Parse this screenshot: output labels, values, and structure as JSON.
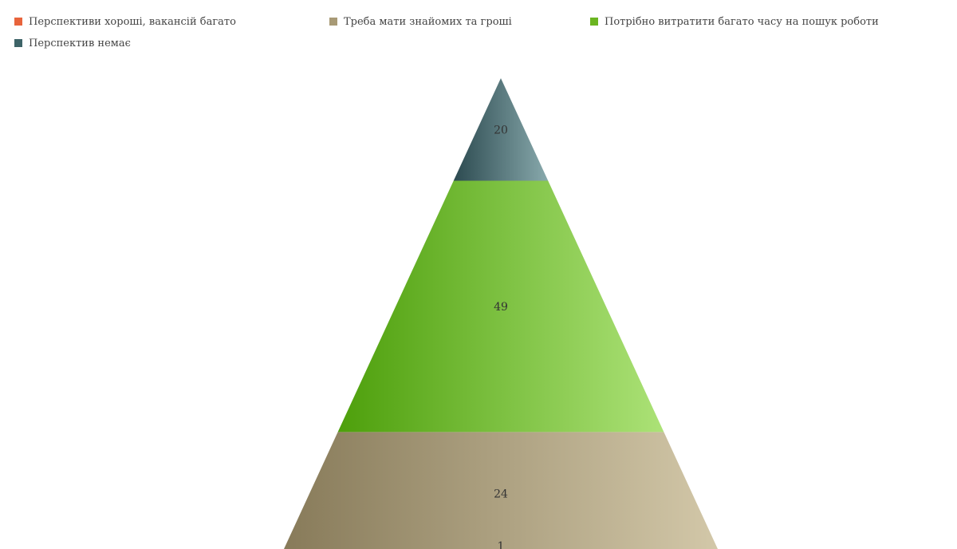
{
  "chart_data": {
    "type": "pyramid",
    "series": [
      {
        "name": "Перспективи хороші, вакансій багато",
        "value": 1,
        "color": "#e8643c"
      },
      {
        "name": "Треба мати знайомих та гроші",
        "value": 24,
        "color": "#a89a76"
      },
      {
        "name": "Потрібно витратити багато часу на пошук роботи",
        "value": 49,
        "color": "#6bb521"
      },
      {
        "name": "Перспектив немає",
        "value": 20,
        "color": "#3e6468"
      }
    ],
    "value_labels": [
      "1",
      "24",
      "49",
      "20"
    ],
    "legend_position": "top"
  }
}
